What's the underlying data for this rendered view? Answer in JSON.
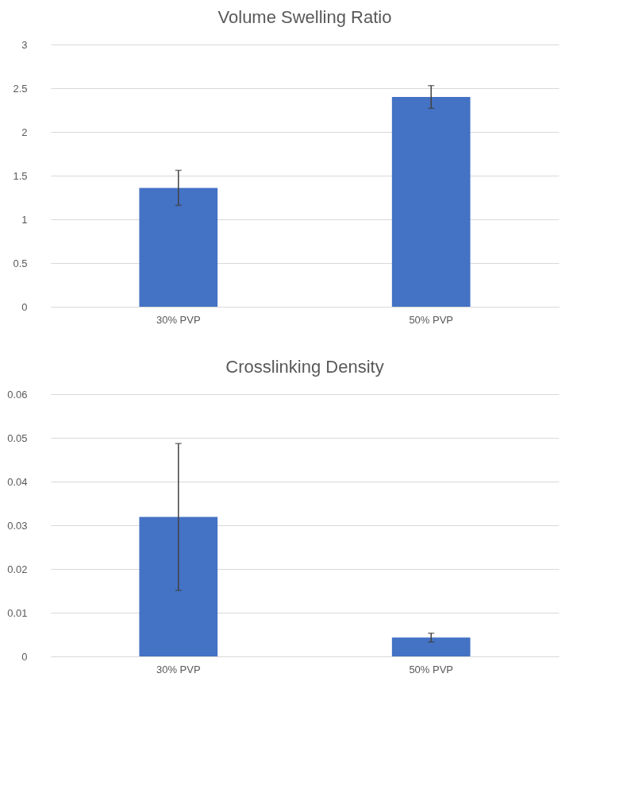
{
  "chart_data": [
    {
      "type": "bar",
      "title": "Volume Swelling Ratio",
      "categories": [
        "30% PVP",
        "50% PVP"
      ],
      "values": [
        1.36,
        2.4
      ],
      "errors": [
        0.2,
        0.13
      ],
      "color": "#4472c4",
      "ylim": [
        0,
        3
      ],
      "yticks": [
        0,
        0.5,
        1,
        1.5,
        2,
        2.5,
        3
      ],
      "grid": "y"
    },
    {
      "type": "bar",
      "title": "Crosslinking Density",
      "categories": [
        "30% PVP",
        "50% PVP"
      ],
      "values": [
        0.0319,
        0.0043
      ],
      "errors": [
        0.0168,
        0.001
      ],
      "color": "#4472c4",
      "ylim": [
        0,
        0.06
      ],
      "yticks": [
        0,
        0.01,
        0.02,
        0.03,
        0.04,
        0.05,
        0.06
      ],
      "grid": "y"
    }
  ]
}
